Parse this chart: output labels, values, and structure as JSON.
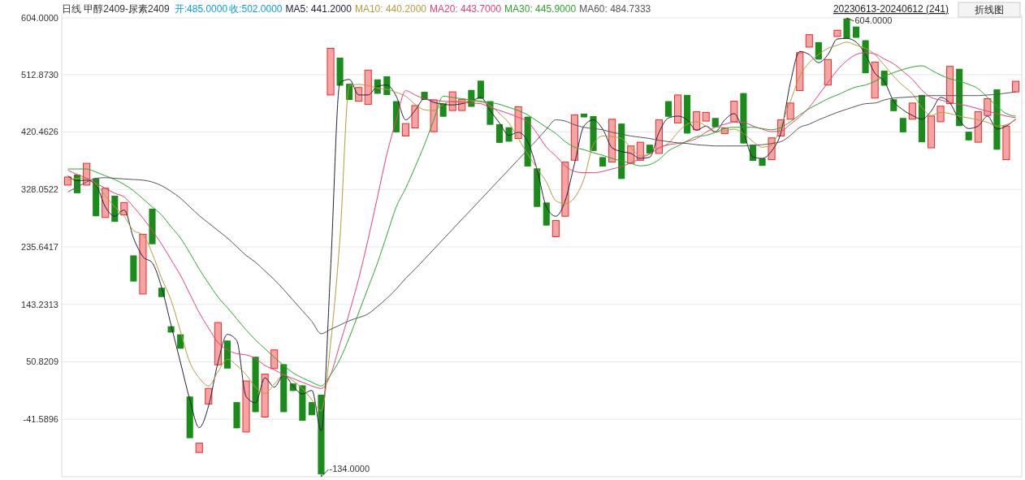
{
  "chart_data": {
    "type": "candlestick",
    "title": "日线  甲醇2409-尿素2409",
    "subtitle": "20230613-20240612 (241)",
    "annotations": [
      "开:485.0000",
      "收:502.0000",
      "折线图",
      "604.0000",
      "-134.0000"
    ],
    "categories": [
      null,
      null,
      null,
      null,
      null,
      null,
      null,
      null,
      null,
      null,
      null,
      null,
      null,
      null,
      null,
      null,
      null,
      null,
      null,
      null,
      null,
      null,
      null,
      null,
      null,
      null,
      null,
      null,
      null,
      null,
      null,
      null,
      null,
      null,
      null,
      null,
      null,
      null,
      null,
      null,
      null,
      null,
      null,
      null,
      null,
      null,
      null,
      null,
      null,
      null,
      null,
      null,
      null,
      null,
      null,
      null,
      null,
      null,
      null,
      null,
      null,
      null,
      null,
      null,
      null,
      null,
      null,
      null,
      null,
      null,
      null,
      null,
      null,
      null,
      null,
      null,
      null,
      null,
      null,
      null,
      null,
      null,
      null,
      null,
      null,
      null,
      null,
      null,
      null,
      null,
      null,
      null,
      null,
      null,
      null,
      null,
      null,
      null,
      null,
      null,
      null,
      null
    ],
    "ohlc": [
      [
        335,
        348,
        335,
        348
      ],
      [
        352,
        352,
        322,
        322
      ],
      [
        335,
        370,
        335,
        370
      ],
      [
        346,
        346,
        285,
        285
      ],
      [
        283,
        330,
        283,
        330
      ],
      [
        318,
        318,
        276,
        276
      ],
      [
        287,
        307,
        287,
        307
      ],
      [
        222,
        222,
        180,
        180
      ],
      [
        160,
        256,
        160,
        256
      ],
      [
        297,
        297,
        240,
        240
      ],
      [
        170,
        170,
        155,
        155
      ],
      [
        108,
        108,
        98,
        98
      ],
      [
        95,
        95,
        72,
        72
      ],
      [
        -5,
        -5,
        -72,
        -72
      ],
      [
        -95,
        -80,
        -95,
        -80
      ],
      [
        -17,
        8,
        -17,
        8
      ],
      [
        46,
        114,
        46,
        114
      ],
      [
        85,
        85,
        40,
        40
      ],
      [
        -14,
        -14,
        -56,
        -56
      ],
      [
        -62,
        20,
        -62,
        20
      ],
      [
        59,
        59,
        -30,
        -30
      ],
      [
        -38,
        31,
        -38,
        31
      ],
      [
        40,
        70,
        40,
        70
      ],
      [
        47,
        47,
        -30,
        -30
      ],
      [
        16,
        16,
        4,
        4
      ],
      [
        13,
        13,
        -44,
        -44
      ],
      [
        -14,
        -14,
        -35,
        -35
      ],
      [
        -2,
        -2,
        -134,
        -130
      ],
      [
        480,
        555,
        480,
        555
      ],
      [
        540,
        540,
        495,
        495
      ],
      [
        498,
        498,
        472,
        472
      ],
      [
        470,
        492,
        470,
        492
      ],
      [
        465,
        520,
        465,
        520
      ],
      [
        505,
        505,
        482,
        482
      ],
      [
        510,
        510,
        480,
        480
      ],
      [
        470,
        470,
        420,
        420
      ],
      [
        414,
        434,
        414,
        434
      ],
      [
        427,
        463,
        427,
        463
      ],
      [
        485,
        485,
        472,
        472
      ],
      [
        421,
        472,
        421,
        472
      ],
      [
        467,
        467,
        445,
        445
      ],
      [
        455,
        485,
        455,
        485
      ],
      [
        455,
        473,
        455,
        473
      ],
      [
        488,
        488,
        461,
        461
      ],
      [
        503,
        503,
        474,
        474
      ],
      [
        470,
        470,
        432,
        432
      ],
      [
        433,
        433,
        403,
        403
      ],
      [
        428,
        428,
        405,
        405
      ],
      [
        410,
        461,
        410,
        461
      ],
      [
        445,
        445,
        365,
        365
      ],
      [
        362,
        362,
        300,
        300
      ],
      [
        307,
        307,
        270,
        270
      ],
      [
        252,
        278,
        252,
        278
      ],
      [
        285,
        372,
        285,
        372
      ],
      [
        375,
        448,
        375,
        448
      ],
      [
        450,
        450,
        444,
        444
      ],
      [
        446,
        446,
        390,
        390
      ],
      [
        380,
        380,
        365,
        365
      ],
      [
        372,
        441,
        372,
        441
      ],
      [
        434,
        434,
        345,
        345
      ],
      [
        370,
        398,
        370,
        398
      ],
      [
        375,
        404,
        375,
        404
      ],
      [
        400,
        400,
        386,
        386
      ],
      [
        386,
        440,
        386,
        440
      ],
      [
        470,
        470,
        445,
        445
      ],
      [
        435,
        480,
        435,
        480
      ],
      [
        480,
        480,
        418,
        418
      ],
      [
        424,
        453,
        424,
        453
      ],
      [
        438,
        452,
        438,
        452
      ],
      [
        443,
        443,
        428,
        428
      ],
      [
        418,
        427,
        418,
        427
      ],
      [
        437,
        470,
        437,
        470
      ],
      [
        483,
        483,
        402,
        402
      ],
      [
        400,
        400,
        374,
        374
      ],
      [
        378,
        378,
        366,
        366
      ],
      [
        376,
        411,
        376,
        411
      ],
      [
        414,
        440,
        414,
        440
      ],
      [
        441,
        467,
        441,
        467
      ],
      [
        487,
        548,
        487,
        548
      ],
      [
        557,
        577,
        557,
        577
      ],
      [
        565,
        565,
        537,
        537
      ],
      [
        496,
        537,
        496,
        537
      ],
      [
        574,
        584,
        574,
        584
      ],
      [
        603,
        604,
        571,
        571
      ],
      [
        590,
        590,
        572,
        572
      ],
      [
        568,
        568,
        515,
        515
      ],
      [
        475,
        533,
        475,
        533
      ],
      [
        519,
        519,
        495,
        495
      ],
      [
        473,
        473,
        454,
        454
      ],
      [
        443,
        443,
        420,
        420
      ],
      [
        441,
        467,
        441,
        467
      ],
      [
        480,
        480,
        404,
        404
      ],
      [
        395,
        446,
        395,
        446
      ],
      [
        437,
        462,
        437,
        462
      ],
      [
        466,
        526,
        466,
        526
      ],
      [
        522,
        522,
        430,
        430
      ],
      [
        421,
        421,
        407,
        407
      ],
      [
        404,
        453,
        404,
        453
      ],
      [
        447,
        474,
        447,
        474
      ],
      [
        489,
        489,
        392,
        392
      ],
      [
        376,
        430,
        376,
        430
      ],
      [
        485,
        502,
        485,
        502
      ]
    ],
    "series": [
      {
        "name": "MA5: 441.2000",
        "type": "line",
        "color": "#22223a",
        "values": [
          350,
          342,
          343,
          335,
          300,
          285,
          295,
          250,
          220,
          210,
          170,
          110,
          50,
          -10,
          -55,
          -20,
          50,
          95,
          85,
          -5,
          -15,
          25,
          10,
          30,
          12,
          -1,
          5,
          -60,
          200,
          500,
          505,
          480,
          480,
          494,
          496,
          478,
          440,
          455,
          474,
          468,
          465,
          464,
          466,
          470,
          476,
          455,
          435,
          415,
          420,
          405,
          360,
          300,
          285,
          310,
          370,
          430,
          440,
          425,
          395,
          389,
          386,
          378,
          380,
          420,
          443,
          446,
          440,
          423,
          430,
          421,
          440,
          450,
          420,
          380,
          378,
          390,
          420,
          500,
          550,
          545,
          532,
          545,
          570,
          571,
          565,
          545,
          515,
          502,
          470,
          456,
          447,
          441,
          454,
          476,
          467,
          440,
          426,
          430,
          446,
          425,
          430,
          441.2
        ]
      },
      {
        "name": "MA10: 440.2000",
        "type": "line",
        "color": "#b89a3c",
        "values": [
          343,
          346,
          346,
          336,
          318,
          300,
          285,
          262,
          255,
          225,
          185,
          150,
          100,
          50,
          25,
          12,
          35,
          55,
          45,
          30,
          10,
          0,
          15,
          30,
          20,
          8,
          -10,
          -28,
          80,
          250,
          495,
          497,
          495,
          491,
          489,
          484,
          478,
          465,
          456,
          455,
          465,
          470,
          470,
          470,
          469,
          463,
          450,
          435,
          410,
          385,
          362,
          340,
          310,
          305,
          315,
          345,
          400,
          414,
          413,
          410,
          395,
          382,
          385,
          395,
          402,
          420,
          433,
          437,
          430,
          420,
          422,
          425,
          418,
          405,
          396,
          400,
          430,
          470,
          510,
          532,
          545,
          555,
          560,
          565,
          560,
          555,
          545,
          528,
          510,
          495,
          482,
          460,
          447,
          452,
          450,
          446,
          443,
          440,
          436,
          430,
          432,
          440.2
        ]
      },
      {
        "name": "MA20: 443.7000",
        "type": "line",
        "color": "#e8407a",
        "values": [
          359,
          352,
          346,
          338,
          330,
          322,
          316,
          300,
          282,
          262,
          240,
          215,
          190,
          160,
          130,
          105,
          82,
          70,
          64,
          62,
          56,
          45,
          38,
          30,
          24,
          18,
          12,
          8,
          30,
          80,
          130,
          185,
          248,
          316,
          385,
          440,
          487,
          480,
          474,
          472,
          470,
          469,
          468,
          467,
          466,
          460,
          455,
          450,
          444,
          437,
          418,
          396,
          382,
          366,
          357,
          355,
          355,
          357,
          361,
          365,
          371,
          378,
          385,
          395,
          400,
          402,
          405,
          410,
          420,
          428,
          433,
          436,
          436,
          430,
          425,
          421,
          422,
          433,
          445,
          460,
          480,
          500,
          520,
          535,
          545,
          548,
          546,
          538,
          530,
          518,
          505,
          488,
          476,
          472,
          468,
          465,
          462,
          458,
          454,
          450,
          446,
          443.7
        ]
      },
      {
        "name": "MA30: 445.9000",
        "type": "line",
        "color": "#2aa82a",
        "values": [
          361,
          361,
          361,
          356,
          350,
          344,
          336,
          326,
          313,
          300,
          287,
          268,
          250,
          226,
          200,
          177,
          155,
          138,
          120,
          102,
          86,
          72,
          58,
          45,
          33,
          25,
          18,
          12,
          30,
          55,
          90,
          130,
          170,
          210,
          255,
          300,
          330,
          364,
          400,
          440,
          478,
          476,
          474,
          472,
          470,
          468,
          465,
          460,
          455,
          448,
          438,
          428,
          418,
          405,
          396,
          392,
          387,
          383,
          378,
          374,
          370,
          366,
          368,
          376,
          390,
          398,
          406,
          413,
          415,
          420,
          426,
          428,
          428,
          428,
          426,
          424,
          428,
          437,
          448,
          458,
          466,
          474,
          480,
          487,
          493,
          496,
          502,
          510,
          516,
          521,
          525,
          527,
          520,
          512,
          506,
          502,
          497,
          490,
          476,
          462,
          450,
          445.9
        ]
      },
      {
        "name": "MA60: 484.7333",
        "type": "line",
        "color": "#555555",
        "values": [
          324,
          332,
          340,
          346,
          347,
          346,
          345,
          344,
          343,
          340,
          334,
          325,
          314,
          300,
          286,
          274,
          262,
          250,
          236,
          222,
          211,
          197,
          183,
          167,
          150,
          133,
          116,
          96,
          103,
          110,
          117,
          122,
          128,
          140,
          153,
          168,
          185,
          200,
          216,
          232,
          248,
          264,
          280,
          296,
          312,
          328,
          344,
          360,
          376,
          392,
          408,
          425,
          440,
          438,
          432,
          428,
          426,
          424,
          420,
          417,
          414,
          412,
          410,
          407,
          405,
          403,
          402,
          400,
          399,
          398,
          398,
          398,
          398,
          399,
          400,
          402,
          405,
          415,
          428,
          433,
          440,
          446,
          452,
          457,
          462,
          466,
          467,
          472,
          475,
          476,
          477,
          478,
          479,
          479,
          479,
          479,
          479,
          479,
          480,
          481,
          483,
          484.7333
        ]
      }
    ],
    "ylim": [
      -134,
      604
    ],
    "yticks": [
      {
        "value": 604,
        "label": "604.0000"
      },
      {
        "value": 512.873,
        "label": "512.8730"
      },
      {
        "value": 420.4626,
        "label": "420.4626"
      },
      {
        "value": 328.0522,
        "label": "328.0522"
      },
      {
        "value": 235.6417,
        "label": "235.6417"
      },
      {
        "value": 143.2313,
        "label": "143.2313"
      },
      {
        "value": 50.8209,
        "label": "50.8209"
      },
      {
        "value": -41.5896,
        "label": "-41.5896"
      }
    ],
    "grid": "y",
    "legend": "top left"
  }
}
